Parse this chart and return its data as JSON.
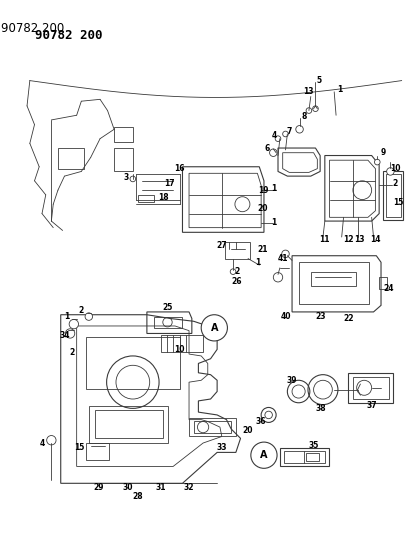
{
  "title": "90782 200",
  "background_color": "#ffffff",
  "line_color": "#3a3a3a",
  "text_color": "#000000",
  "figsize": [
    4.07,
    5.33
  ],
  "dpi": 100,
  "label_fontsize": 5.5,
  "title_fontsize": 9
}
